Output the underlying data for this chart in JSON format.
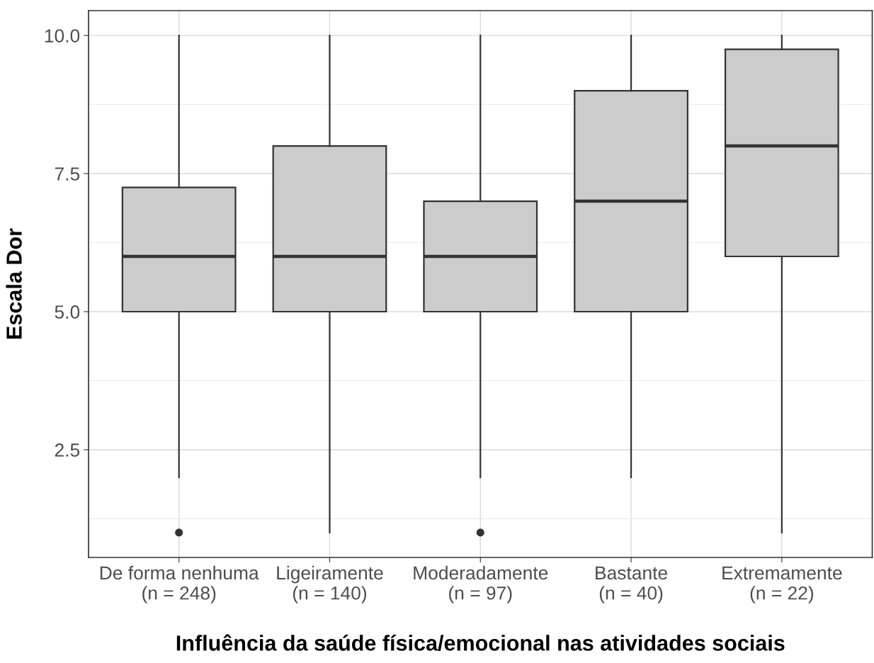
{
  "chart_data": {
    "type": "box",
    "xlabel": "Influência da saúde física/emocional nas atividades sociais",
    "ylabel": "Escala Dor",
    "categories": [
      "De forma nenhuma\n(n = 248)",
      "Ligeiramente\n(n = 140)",
      "Moderadamente\n(n = 97)",
      "Bastante\n(n = 40)",
      "Extremamente\n(n = 22)"
    ],
    "boxes": [
      {
        "low": 2,
        "q1": 5,
        "median": 6,
        "q3": 7.25,
        "high": 10,
        "outliers": [
          1
        ]
      },
      {
        "low": 1,
        "q1": 5,
        "median": 6,
        "q3": 8,
        "high": 10
      },
      {
        "low": 2,
        "q1": 5,
        "median": 6,
        "q3": 7,
        "high": 10,
        "outliers": [
          1
        ]
      },
      {
        "low": 2,
        "q1": 5,
        "median": 7,
        "q3": 9,
        "high": 10
      },
      {
        "low": 1,
        "q1": 6,
        "median": 8,
        "q3": 9.75,
        "high": 10
      }
    ],
    "color": "#cccccc",
    "ylim": [
      0.55,
      10.45
    ],
    "yticks": [
      {
        "value": 1.25,
        "label": null
      },
      2.5,
      {
        "value": 3.75,
        "label": null
      },
      {
        "value": 5,
        "label": "5.0"
      },
      {
        "value": 6.25,
        "label": null
      },
      7.5,
      {
        "value": 8.75,
        "label": null
      },
      {
        "value": 10,
        "label": "10.0"
      }
    ],
    "grid": true
  }
}
